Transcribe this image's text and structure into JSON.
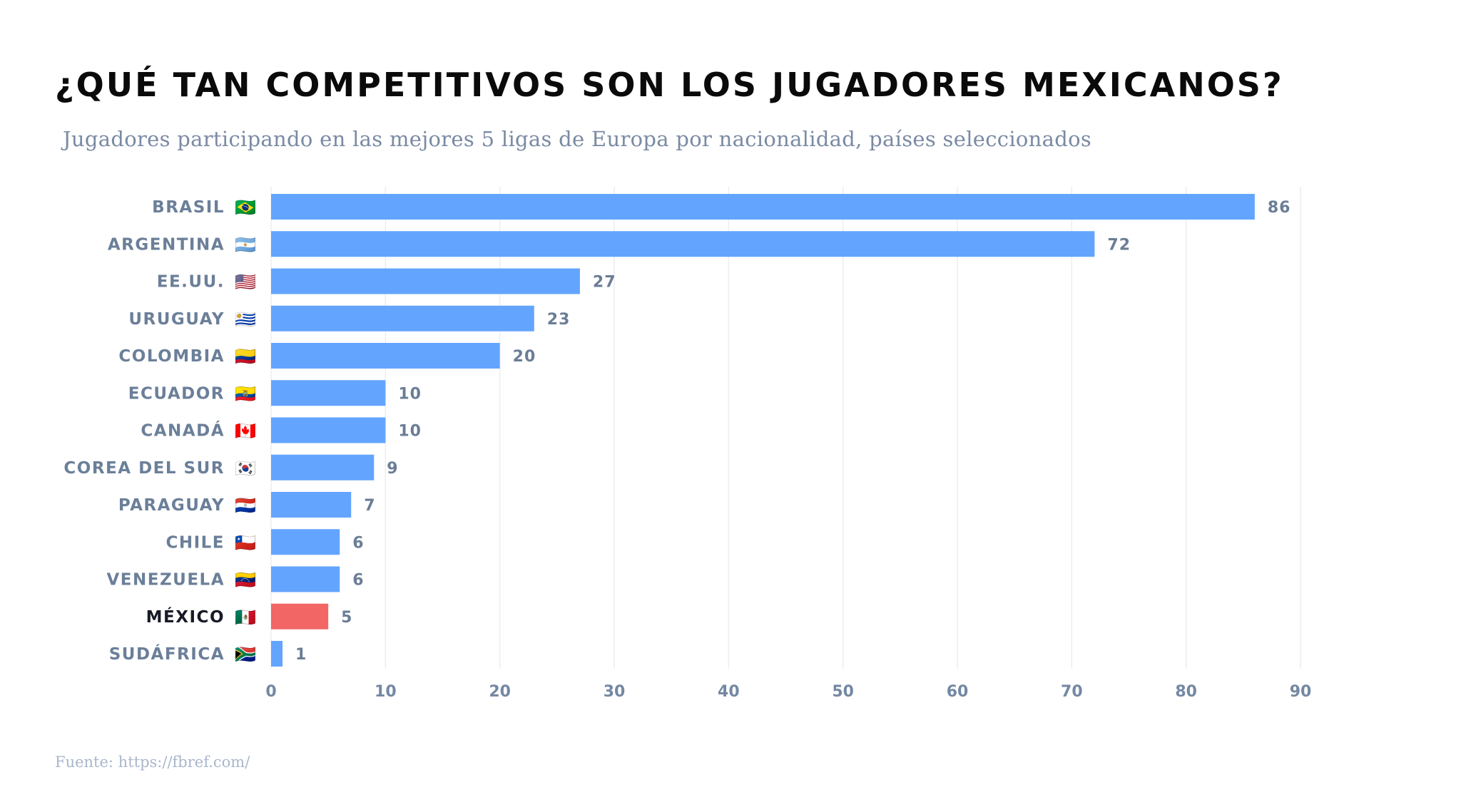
{
  "chart_data": {
    "type": "bar",
    "orientation": "horizontal",
    "title": "¿QUÉ TAN COMPETITIVOS SON LOS JUGADORES MEXICANOS?",
    "subtitle": "Jugadores participando en las mejores 5 ligas de Europa por nacionalidad, países seleccionados",
    "source": "Fuente: https://fbref.com/",
    "xlabel": "",
    "ylabel": "",
    "xlim": [
      0,
      90
    ],
    "xticks": [
      0,
      10,
      20,
      30,
      40,
      50,
      60,
      70,
      80,
      90
    ],
    "grid": true,
    "categories": [
      "BRASIL",
      "ARGENTINA",
      "EE.UU.",
      "URUGUAY",
      "COLOMBIA",
      "ECUADOR",
      "CANADÁ",
      "COREA DEL SUR",
      "PARAGUAY",
      "CHILE",
      "VENEZUELA",
      "MÉXICO",
      "SUDÁFRICA"
    ],
    "flags": [
      "🇧🇷",
      "🇦🇷",
      "🇺🇸",
      "🇺🇾",
      "🇨🇴",
      "🇪🇨",
      "🇨🇦",
      "🇰🇷",
      "🇵🇾",
      "🇨🇱",
      "🇻🇪",
      "🇲🇽",
      "🇿🇦"
    ],
    "values": [
      86,
      72,
      27,
      23,
      20,
      10,
      10,
      9,
      7,
      6,
      6,
      5,
      1
    ],
    "highlight": "MÉXICO",
    "colors": {
      "bar": "#63a4ff",
      "highlight_bar": "#f26666",
      "label": "#6b7f99",
      "highlight_label": "#161b26",
      "grid": "#ebedf1"
    }
  }
}
